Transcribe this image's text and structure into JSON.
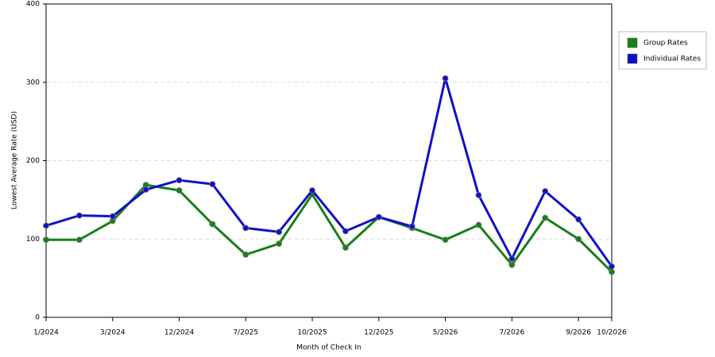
{
  "chart_data": {
    "type": "line",
    "xlabel": "Month of Check In",
    "ylabel": "Lowest Average Rate (USD)",
    "categories": [
      "1/2024",
      null,
      "3/2024",
      null,
      "12/2024",
      null,
      "7/2025",
      null,
      "10/2025",
      null,
      "12/2025",
      null,
      "5/2026",
      null,
      "7/2026",
      null,
      "9/2026",
      "10/2026"
    ],
    "series": [
      {
        "name": "Group Rates",
        "color": "#178017",
        "values": [
          99,
          99,
          123,
          169,
          162,
          119,
          80,
          94,
          157,
          89,
          128,
          114,
          99,
          118,
          67,
          127,
          100,
          58
        ]
      },
      {
        "name": "Individual Rates",
        "color": "#1010c8",
        "values": [
          117,
          130,
          129,
          163,
          175,
          170,
          114,
          109,
          162,
          110,
          128,
          116,
          305,
          156,
          75,
          161,
          125,
          65
        ]
      }
    ],
    "ylim": [
      0,
      400
    ],
    "yticks": [
      0,
      100,
      200,
      300,
      400
    ],
    "grid": true
  }
}
